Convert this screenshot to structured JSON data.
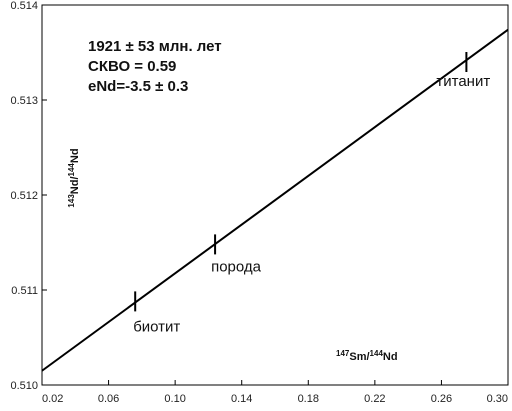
{
  "chart_data": {
    "type": "scatter",
    "xlabel": {
      "sup1": "147",
      "base1": "Sm/",
      "sup2": "144",
      "base2": "Nd"
    },
    "ylabel": {
      "sup1": "143",
      "base1": "Nd/",
      "sup2": "144",
      "base2": "Nd"
    },
    "xlim": [
      0.02,
      0.3
    ],
    "ylim": [
      0.51,
      0.514
    ],
    "x_ticks": [
      "0.02",
      "0.06",
      "0.10",
      "0.14",
      "0.18",
      "0.22",
      "0.26",
      "0.30"
    ],
    "y_ticks": [
      "0.510",
      "0.511",
      "0.512",
      "0.513",
      "0.514"
    ],
    "annotations": [
      "1921 ± 53 млн. лет",
      "СКВО = 0.59",
      "eNd=-3.5 ± 0.3"
    ],
    "isochron": {
      "x": [
        0.02,
        0.3
      ],
      "y": [
        0.51015,
        0.51374
      ]
    },
    "points": [
      {
        "label": "биотит",
        "x": 0.076,
        "y": 0.51088
      },
      {
        "label": "порода",
        "x": 0.124,
        "y": 0.51148
      },
      {
        "label": "титанит",
        "x": 0.275,
        "y": 0.5134
      }
    ],
    "grid": false,
    "colors": {
      "line": "#000000",
      "frame": "#000000"
    }
  }
}
